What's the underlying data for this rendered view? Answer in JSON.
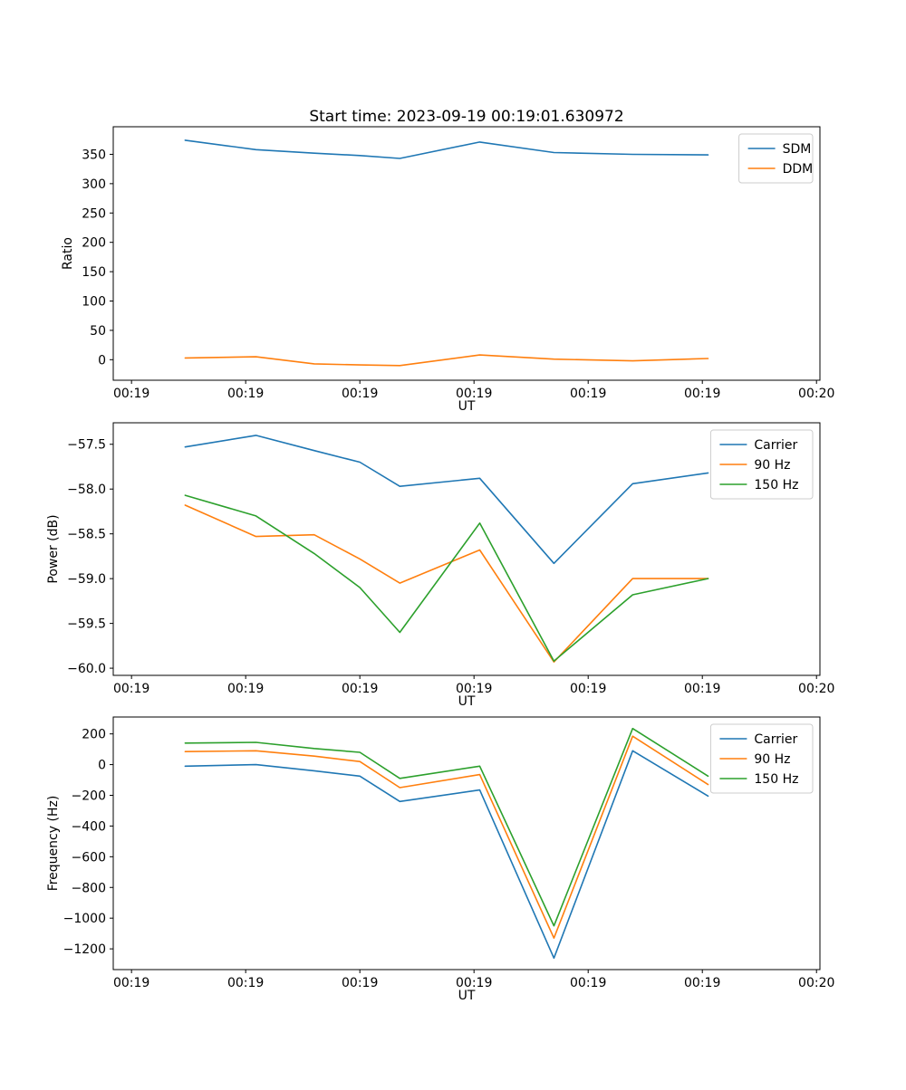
{
  "figure": {
    "title": "Start time: 2023-09-19 00:19:01.630972",
    "background_color": "#ffffff",
    "text_color": "#000000",
    "axis_color": "#000000"
  },
  "chart_data": [
    {
      "type": "line",
      "ylabel": "Ratio",
      "xlabel": "UT",
      "xlim": [
        -1.6,
        60.3
      ],
      "ylim": [
        -35,
        397
      ],
      "x": [
        4.7,
        10.9,
        16.0,
        20.0,
        23.5,
        30.5,
        37.0,
        43.9,
        50.5
      ],
      "xticks": {
        "values": [
          0,
          10,
          20,
          30,
          40,
          50,
          60
        ],
        "labels": [
          "00:19",
          "00:19",
          "00:19",
          "00:19",
          "00:19",
          "00:19",
          "00:20"
        ]
      },
      "yticks": {
        "values": [
          0,
          50,
          100,
          150,
          200,
          250,
          300,
          350
        ],
        "labels": [
          "0",
          "50",
          "100",
          "150",
          "200",
          "250",
          "300",
          "350"
        ]
      },
      "legend": {
        "position": "upper right"
      },
      "series": [
        {
          "name": "SDM",
          "color": "#1f77b4",
          "values": [
            374,
            358,
            352,
            348,
            343,
            371,
            353,
            350,
            349
          ]
        },
        {
          "name": "DDM",
          "color": "#ff7f0e",
          "values": [
            3,
            5,
            -7,
            -9,
            -10,
            8,
            1,
            -2,
            2
          ]
        }
      ]
    },
    {
      "type": "line",
      "ylabel": "Power (dB)",
      "xlabel": "UT",
      "xlim": [
        -1.6,
        60.3
      ],
      "ylim": [
        -60.08,
        -57.26
      ],
      "x": [
        4.7,
        10.9,
        16.0,
        20.0,
        23.5,
        30.5,
        37.0,
        43.9,
        50.5
      ],
      "xticks": {
        "values": [
          0,
          10,
          20,
          30,
          40,
          50,
          60
        ],
        "labels": [
          "00:19",
          "00:19",
          "00:19",
          "00:19",
          "00:19",
          "00:19",
          "00:20"
        ]
      },
      "yticks": {
        "values": [
          -57.5,
          -58.0,
          -58.5,
          -59.0,
          -59.5,
          -60.0
        ],
        "labels": [
          "−57.5",
          "−58.0",
          "−58.5",
          "−59.0",
          "−59.5",
          "−60.0"
        ]
      },
      "legend": {
        "position": "upper right"
      },
      "series": [
        {
          "name": "Carrier",
          "color": "#1f77b4",
          "values": [
            -57.53,
            -57.4,
            -57.57,
            -57.7,
            -57.97,
            -57.88,
            -58.83,
            -57.94,
            -57.82
          ]
        },
        {
          "name": "90 Hz",
          "color": "#ff7f0e",
          "values": [
            -58.18,
            -58.53,
            -58.51,
            -58.78,
            -59.05,
            -58.68,
            -59.93,
            -59.0,
            -59.0
          ]
        },
        {
          "name": "150 Hz",
          "color": "#2ca02c",
          "values": [
            -58.07,
            -58.3,
            -58.72,
            -59.1,
            -59.6,
            -58.38,
            -59.92,
            -59.18,
            -59.0
          ]
        }
      ]
    },
    {
      "type": "line",
      "ylabel": "Frequency (Hz)",
      "xlabel": "UT",
      "xlim": [
        -1.6,
        60.3
      ],
      "ylim": [
        -1335,
        310
      ],
      "x": [
        4.7,
        10.9,
        16.0,
        20.0,
        23.5,
        30.5,
        37.0,
        43.9,
        50.5
      ],
      "xticks": {
        "values": [
          0,
          10,
          20,
          30,
          40,
          50,
          60
        ],
        "labels": [
          "00:19",
          "00:19",
          "00:19",
          "00:19",
          "00:19",
          "00:19",
          "00:20"
        ]
      },
      "yticks": {
        "values": [
          200,
          0,
          -200,
          -400,
          -600,
          -800,
          -1000,
          -1200
        ],
        "labels": [
          "200",
          "0",
          "−200",
          "−400",
          "−600",
          "−800",
          "−1000",
          "−1200"
        ]
      },
      "legend": {
        "position": "upper right"
      },
      "series": [
        {
          "name": "Carrier",
          "color": "#1f77b4",
          "values": [
            -10,
            0,
            -40,
            -75,
            -240,
            -165,
            -1260,
            90,
            -205
          ]
        },
        {
          "name": "90 Hz",
          "color": "#ff7f0e",
          "values": [
            85,
            90,
            55,
            20,
            -150,
            -65,
            -1130,
            185,
            -130
          ]
        },
        {
          "name": "150 Hz",
          "color": "#2ca02c",
          "values": [
            140,
            145,
            105,
            80,
            -90,
            -10,
            -1050,
            235,
            -75
          ]
        }
      ]
    }
  ]
}
